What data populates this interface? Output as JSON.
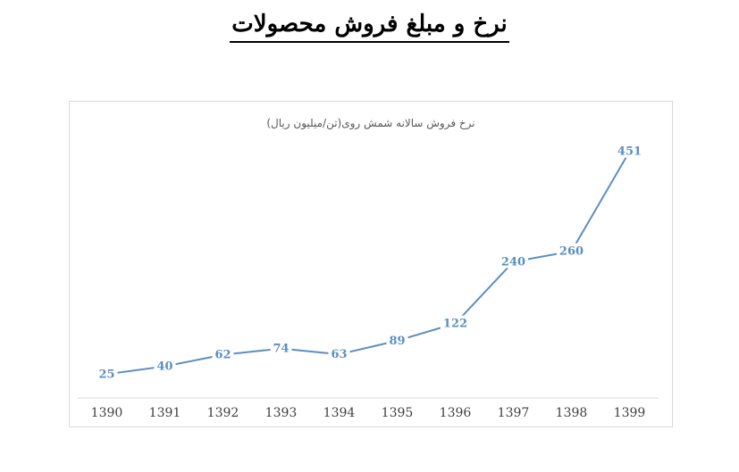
{
  "page": {
    "heading": "نرخ و مبلغ فروش محصولات"
  },
  "chart_data": {
    "type": "line",
    "title": "نرخ فروش سالانه شمش روی(تن/میلیون ریال)",
    "xlabel": "",
    "ylabel": "",
    "categories": [
      "1390",
      "1391",
      "1392",
      "1393",
      "1394",
      "1395",
      "1396",
      "1397",
      "1398",
      "1399"
    ],
    "series": [
      {
        "values": [
          25,
          40,
          62,
          74,
          63,
          89,
          122,
          240,
          260,
          451
        ]
      }
    ],
    "ylim": [
      0,
      500
    ],
    "grid": false,
    "legend": "none",
    "data_labels": true,
    "colors": {
      "line": "#5b8fbf",
      "label": "#5b8fbf",
      "axis": "#d9d9d9",
      "tick_text": "#404040",
      "title_text": "#595959"
    }
  }
}
